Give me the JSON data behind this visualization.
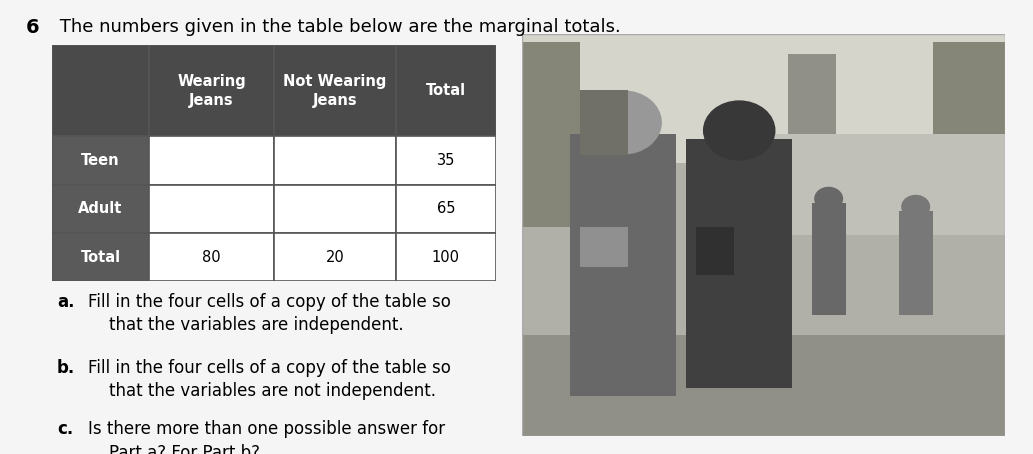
{
  "title_number": "6",
  "title_text": " The numbers given in the table below are the marginal totals.",
  "title_fontsize": 13,
  "header_bg": "#4a4a4a",
  "header_text_color": "#ffffff",
  "row_label_bg": "#5a5a5a",
  "row_label_text_color": "#000000",
  "cell_bg": "#ffffff",
  "cell_text_color": "#000000",
  "border_color": "#555555",
  "col_headers": [
    "Wearing\nJeans",
    "Not Wearing\nJeans",
    "Total"
  ],
  "row_labels": [
    "Teen",
    "Adult",
    "Total"
  ],
  "cell_data": [
    [
      "",
      "",
      "35"
    ],
    [
      "",
      "",
      "65"
    ],
    [
      "80",
      "20",
      "100"
    ]
  ],
  "text_fontsize": 12,
  "bg_color": "#f5f5f5",
  "questions": [
    [
      "a.",
      "Fill in the four cells of a copy of the table so",
      "    that the variables are independent."
    ],
    [
      "b.",
      "Fill in the four cells of a copy of the table so",
      "    that the variables are not independent."
    ],
    [
      "c.",
      "Is there more than one possible answer for",
      "    Part a? For Part b?"
    ]
  ],
  "photo_colors": {
    "bg": "#c8c8c0",
    "sky": "#d5d5cc",
    "mid": "#b0b0a8",
    "ground": "#909088",
    "person1_body": "#686868",
    "person1_head": "#989898",
    "person2_body": "#404040",
    "person2_head": "#383838",
    "tree": "#787870",
    "bg_person": "#686868"
  }
}
